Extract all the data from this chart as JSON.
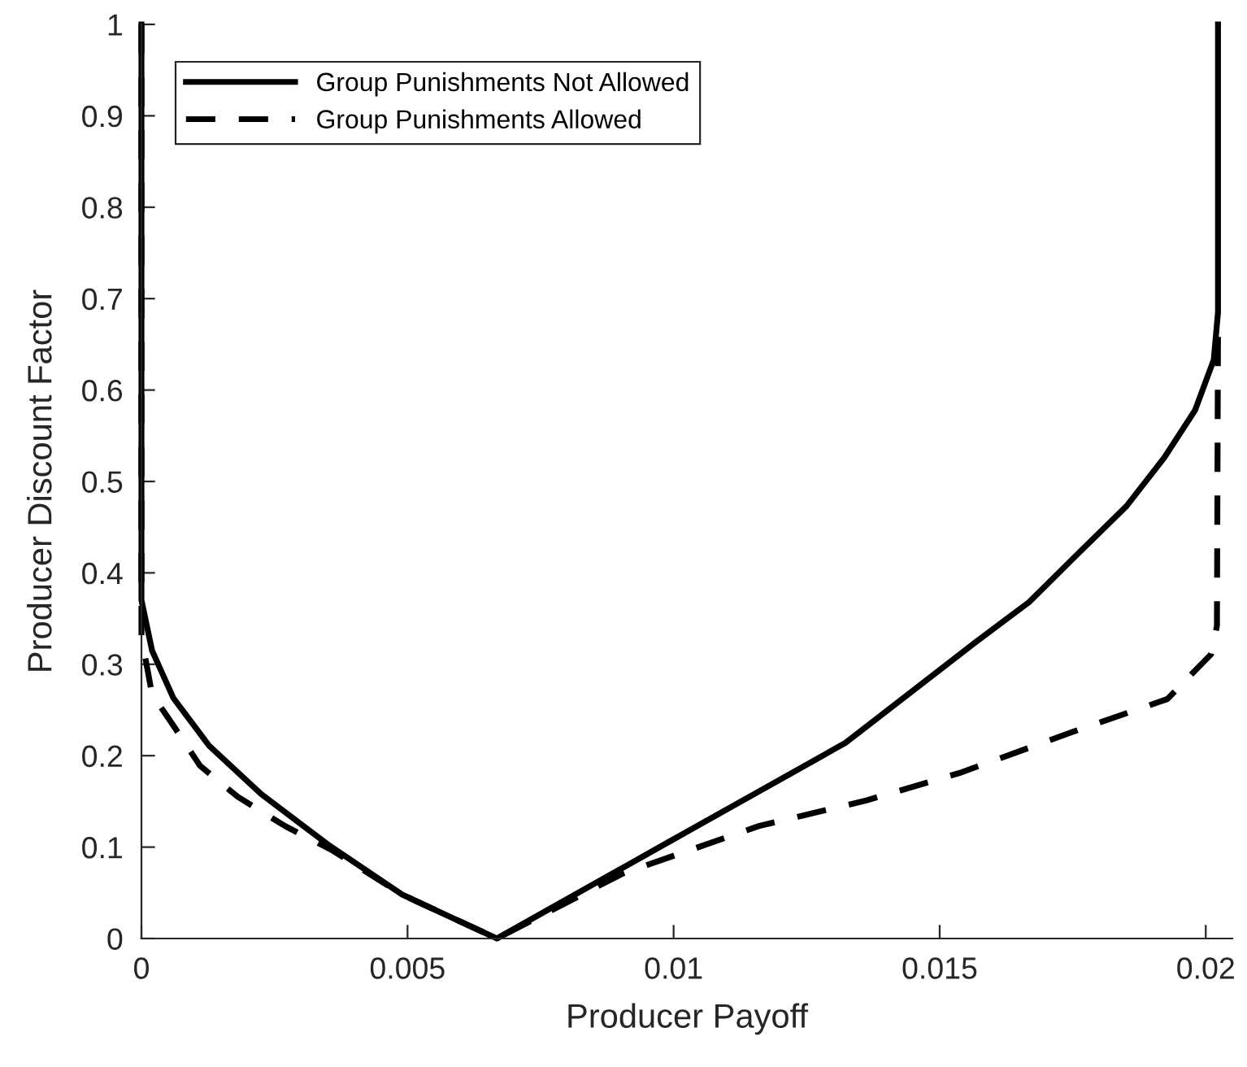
{
  "chart_data": {
    "type": "line",
    "xlabel": "Producer Payoff",
    "ylabel": "Producer Discount Factor",
    "xlim": [
      0,
      0.0205
    ],
    "ylim": [
      0,
      1
    ],
    "xticks": [
      0,
      0.005,
      0.01,
      0.015,
      0.02
    ],
    "yticks": [
      0,
      0.1,
      0.2,
      0.3,
      0.4,
      0.5,
      0.6,
      0.7,
      0.8,
      0.9,
      1
    ],
    "grid": false,
    "legend": "top left",
    "marker": "none",
    "series": [
      {
        "name": "Group Punishments Not Allowed",
        "color": "#000000",
        "line_style": "solid",
        "x": [
          0,
          0,
          0.0002,
          0.0006,
          0.00127,
          0.00225,
          0.0035,
          0.0049,
          0.00668,
          0.00995,
          0.01323,
          0.01567,
          0.01668,
          0.0176,
          0.01851,
          0.01922,
          0.0198,
          0.02015,
          0.02023,
          0.02023
        ],
        "values": [
          1,
          0.37,
          0.315,
          0.263,
          0.211,
          0.158,
          0.103,
          0.048,
          0,
          0.107,
          0.214,
          0.324,
          0.368,
          0.421,
          0.473,
          0.526,
          0.578,
          0.633,
          0.685,
          1
        ]
      },
      {
        "name": "Group Punishments Allowed",
        "color": "#000000",
        "line_style": "dashed",
        "x": [
          0,
          0,
          0.0002,
          0.0006,
          0.0011,
          0.00181,
          0.0027,
          0.0036,
          0.0049,
          0.00668,
          0.00904,
          0.0116,
          0.01362,
          0.01537,
          0.0175,
          0.01928,
          0.0201,
          0.02021,
          0.02023
        ],
        "values": [
          1,
          0.33,
          0.267,
          0.233,
          0.189,
          0.155,
          0.123,
          0.096,
          0.048,
          0,
          0.071,
          0.123,
          0.151,
          0.181,
          0.226,
          0.262,
          0.311,
          0.342,
          0.664
        ]
      }
    ]
  }
}
